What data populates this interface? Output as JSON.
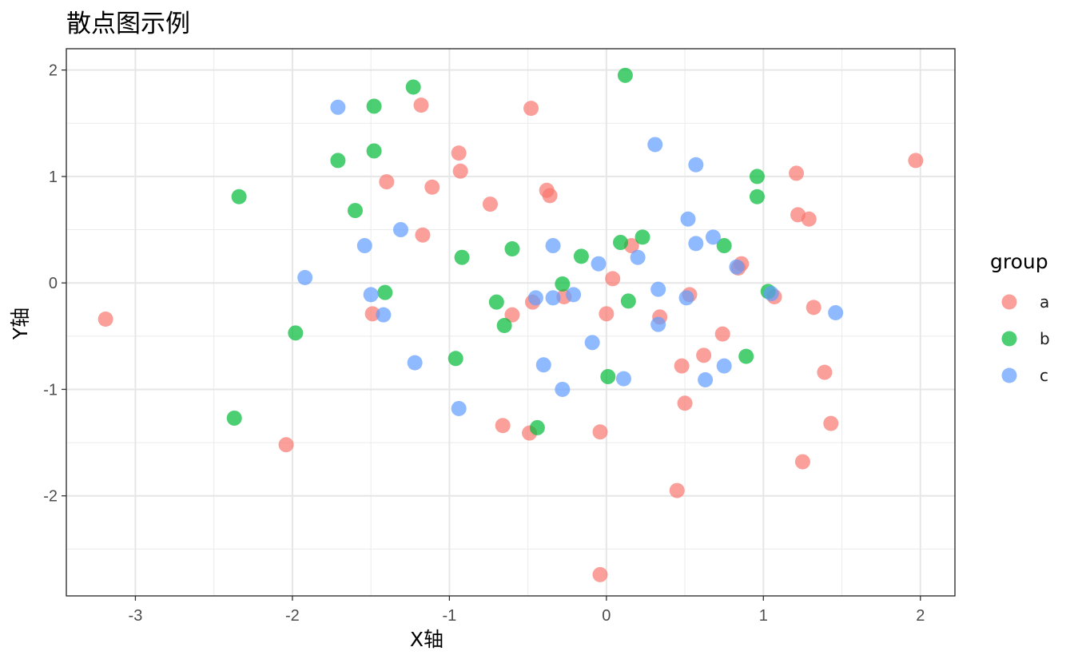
{
  "title": "散点图示例",
  "chart_data": {
    "type": "scatter",
    "title": "散点图示例",
    "xlabel": "X轴",
    "ylabel": "Y轴",
    "xlim": [
      -3.44,
      2.22
    ],
    "ylim": [
      -2.94,
      2.2
    ],
    "xticks": [
      -3,
      -2,
      -1,
      0,
      1,
      2
    ],
    "yticks": [
      -2,
      -1,
      0,
      1,
      2
    ],
    "grid": true,
    "legend": {
      "title": "group",
      "position": "right"
    },
    "colors": {
      "a": "#F8766D",
      "b": "#00BA38",
      "c": "#619CFF"
    },
    "series": [
      {
        "name": "a",
        "points": [
          [
            -3.19,
            -0.34
          ],
          [
            -2.04,
            -1.52
          ],
          [
            -1.49,
            -0.29
          ],
          [
            -1.4,
            0.95
          ],
          [
            -1.17,
            0.45
          ],
          [
            -1.18,
            1.67
          ],
          [
            -1.11,
            0.9
          ],
          [
            -0.94,
            1.22
          ],
          [
            -0.93,
            1.05
          ],
          [
            -0.74,
            0.74
          ],
          [
            -0.66,
            -1.34
          ],
          [
            -0.6,
            -0.3
          ],
          [
            -0.49,
            -1.41
          ],
          [
            -0.47,
            -0.18
          ],
          [
            -0.48,
            1.64
          ],
          [
            -0.38,
            0.87
          ],
          [
            -0.36,
            0.82
          ],
          [
            -0.27,
            -0.13
          ],
          [
            -0.04,
            -1.4
          ],
          [
            -0.04,
            -2.74
          ],
          [
            0.0,
            -0.29
          ],
          [
            0.04,
            0.04
          ],
          [
            0.16,
            0.35
          ],
          [
            0.34,
            -0.32
          ],
          [
            0.45,
            -1.95
          ],
          [
            0.48,
            -0.78
          ],
          [
            0.5,
            -1.13
          ],
          [
            0.53,
            -0.11
          ],
          [
            0.62,
            -0.68
          ],
          [
            0.74,
            -0.48
          ],
          [
            0.84,
            0.14
          ],
          [
            0.86,
            0.18
          ],
          [
            1.07,
            -0.13
          ],
          [
            1.21,
            1.03
          ],
          [
            1.22,
            0.64
          ],
          [
            1.29,
            0.6
          ],
          [
            1.32,
            -0.23
          ],
          [
            1.39,
            -0.84
          ],
          [
            1.43,
            -1.32
          ],
          [
            1.25,
            -1.68
          ],
          [
            1.97,
            1.15
          ]
        ]
      },
      {
        "name": "b",
        "points": [
          [
            -2.34,
            0.81
          ],
          [
            -2.37,
            -1.27
          ],
          [
            -1.98,
            -0.47
          ],
          [
            -1.71,
            1.15
          ],
          [
            -1.6,
            0.68
          ],
          [
            -1.48,
            1.66
          ],
          [
            -1.48,
            1.24
          ],
          [
            -1.41,
            -0.09
          ],
          [
            -1.23,
            1.84
          ],
          [
            -0.96,
            -0.71
          ],
          [
            -0.92,
            0.24
          ],
          [
            -0.7,
            -0.18
          ],
          [
            -0.65,
            -0.4
          ],
          [
            -0.6,
            0.32
          ],
          [
            -0.44,
            -1.36
          ],
          [
            -0.28,
            -0.01
          ],
          [
            -0.16,
            0.25
          ],
          [
            0.01,
            -0.88
          ],
          [
            0.09,
            0.38
          ],
          [
            0.12,
            1.95
          ],
          [
            0.14,
            -0.17
          ],
          [
            0.23,
            0.43
          ],
          [
            0.75,
            0.35
          ],
          [
            0.89,
            -0.69
          ],
          [
            0.96,
            1.0
          ],
          [
            0.96,
            0.81
          ],
          [
            1.03,
            -0.08
          ]
        ]
      },
      {
        "name": "c",
        "points": [
          [
            -1.92,
            0.05
          ],
          [
            -1.71,
            1.65
          ],
          [
            -1.54,
            0.35
          ],
          [
            -1.5,
            -0.11
          ],
          [
            -1.42,
            -0.3
          ],
          [
            -1.31,
            0.5
          ],
          [
            -1.22,
            -0.75
          ],
          [
            -0.94,
            -1.18
          ],
          [
            -0.45,
            -0.14
          ],
          [
            -0.4,
            -0.77
          ],
          [
            -0.34,
            0.35
          ],
          [
            -0.34,
            -0.14
          ],
          [
            -0.28,
            -1.0
          ],
          [
            -0.21,
            -0.11
          ],
          [
            -0.09,
            -0.56
          ],
          [
            -0.05,
            0.18
          ],
          [
            0.11,
            -0.9
          ],
          [
            0.2,
            0.24
          ],
          [
            0.31,
            1.3
          ],
          [
            0.33,
            -0.06
          ],
          [
            0.33,
            -0.39
          ],
          [
            0.51,
            -0.14
          ],
          [
            0.52,
            0.6
          ],
          [
            0.57,
            0.37
          ],
          [
            0.57,
            1.11
          ],
          [
            0.63,
            -0.91
          ],
          [
            0.68,
            0.43
          ],
          [
            0.75,
            -0.78
          ],
          [
            0.83,
            0.15
          ],
          [
            1.05,
            -0.1
          ],
          [
            1.46,
            -0.28
          ]
        ]
      }
    ]
  }
}
